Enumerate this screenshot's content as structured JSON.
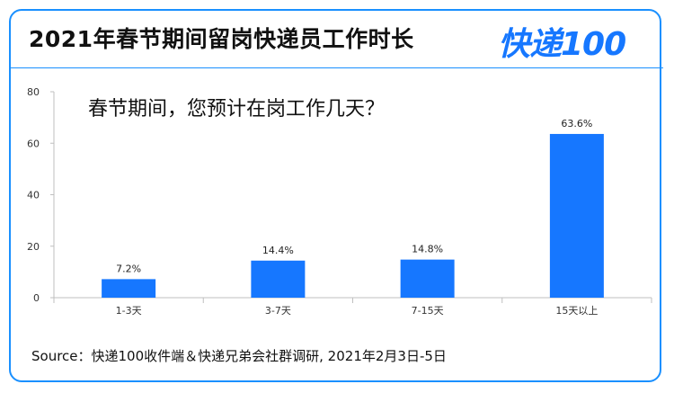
{
  "header": {
    "title": "2021年春节期间留岗快递员工作时长",
    "logo_text": "快递100"
  },
  "colors": {
    "frame": "#1a90ff",
    "bar": "#1677ff",
    "axis": "#bfbfbf",
    "text": "#111111"
  },
  "chart_data": {
    "type": "bar",
    "title": "春节期间，您预计在岗工作几天？",
    "categories": [
      "1-3天",
      "3-7天",
      "7-15天",
      "15天以上"
    ],
    "values": [
      7.2,
      14.4,
      14.8,
      63.6
    ],
    "value_labels": [
      "7.2%",
      "14.4%",
      "14.8%",
      "63.6%"
    ],
    "y_ticks": [
      0,
      20,
      40,
      60,
      80
    ],
    "ylim": [
      0,
      80
    ],
    "grid": false,
    "legend": "none"
  },
  "footer": {
    "source": "Source：快递100收件端＆快递兄弟会社群调研, 2021年2月3日-5日"
  }
}
